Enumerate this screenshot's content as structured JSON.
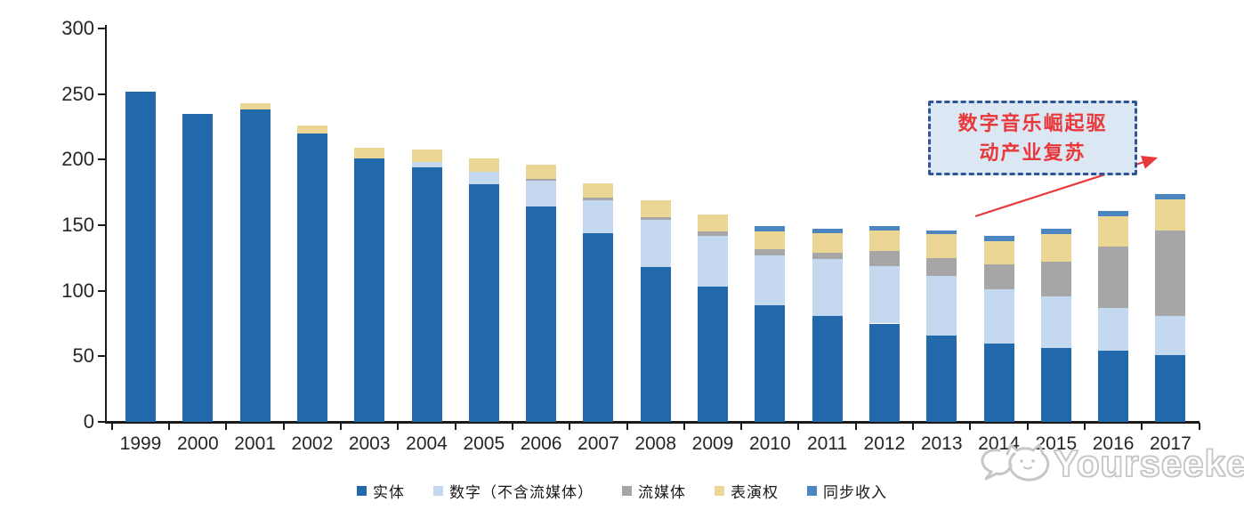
{
  "chart_data": {
    "type": "bar",
    "stacked": true,
    "title": "",
    "xlabel": "",
    "ylabel": "",
    "categories": [
      "1999",
      "2000",
      "2001",
      "2002",
      "2003",
      "2004",
      "2005",
      "2006",
      "2007",
      "2008",
      "2009",
      "2010",
      "2011",
      "2012",
      "2013",
      "2014",
      "2015",
      "2016",
      "2017"
    ],
    "series": [
      {
        "name": "实体",
        "color": "#2169AA",
        "values": [
          252,
          235,
          238,
          220,
          201,
          194,
          181,
          164,
          144,
          118,
          103,
          89,
          81,
          75,
          66,
          60,
          56,
          54,
          51
        ]
      },
      {
        "name": "数字（不含流媒体）",
        "color": "#C4D9EF",
        "values": [
          0,
          0,
          0,
          0,
          0,
          4,
          10,
          20,
          25,
          36,
          39,
          38,
          43,
          44,
          45,
          41,
          40,
          33,
          30
        ]
      },
      {
        "name": "流媒体",
        "color": "#A6A6A6",
        "values": [
          0,
          0,
          0,
          0,
          0,
          0,
          0,
          1,
          2,
          2,
          3,
          5,
          5,
          11,
          14,
          19,
          26,
          47,
          65
        ]
      },
      {
        "name": "表演权",
        "color": "#EBD793",
        "values": [
          0,
          0,
          5,
          6,
          8,
          10,
          10,
          11,
          11,
          13,
          13,
          13,
          15,
          16,
          18,
          18,
          21,
          23,
          24
        ]
      },
      {
        "name": "同步收入",
        "color": "#4C86C0",
        "values": [
          0,
          0,
          0,
          0,
          0,
          0,
          0,
          0,
          0,
          0,
          0,
          4,
          3,
          3,
          3,
          4,
          4,
          4,
          4
        ]
      }
    ],
    "totals": [
      252,
      235,
      243,
      226,
      209,
      208,
      201,
      196,
      182,
      169,
      158,
      149,
      147,
      149,
      146,
      142,
      147,
      161,
      174
    ],
    "ylim": [
      0,
      300
    ],
    "yticks": [
      0,
      50,
      100,
      150,
      200,
      250,
      300
    ],
    "grid": false,
    "legend_position": "bottom"
  },
  "annotation": {
    "full_text": "数字音乐崛起驱动产业复苏",
    "lines": [
      "数字音乐崛起驱",
      "动产业复苏"
    ],
    "text_color": "#E8383A",
    "box_fill": "#DCE7F4",
    "border_color": "#2F5597",
    "arrow_color": "#E8383A"
  },
  "watermark": {
    "text": "Yourseeker"
  }
}
